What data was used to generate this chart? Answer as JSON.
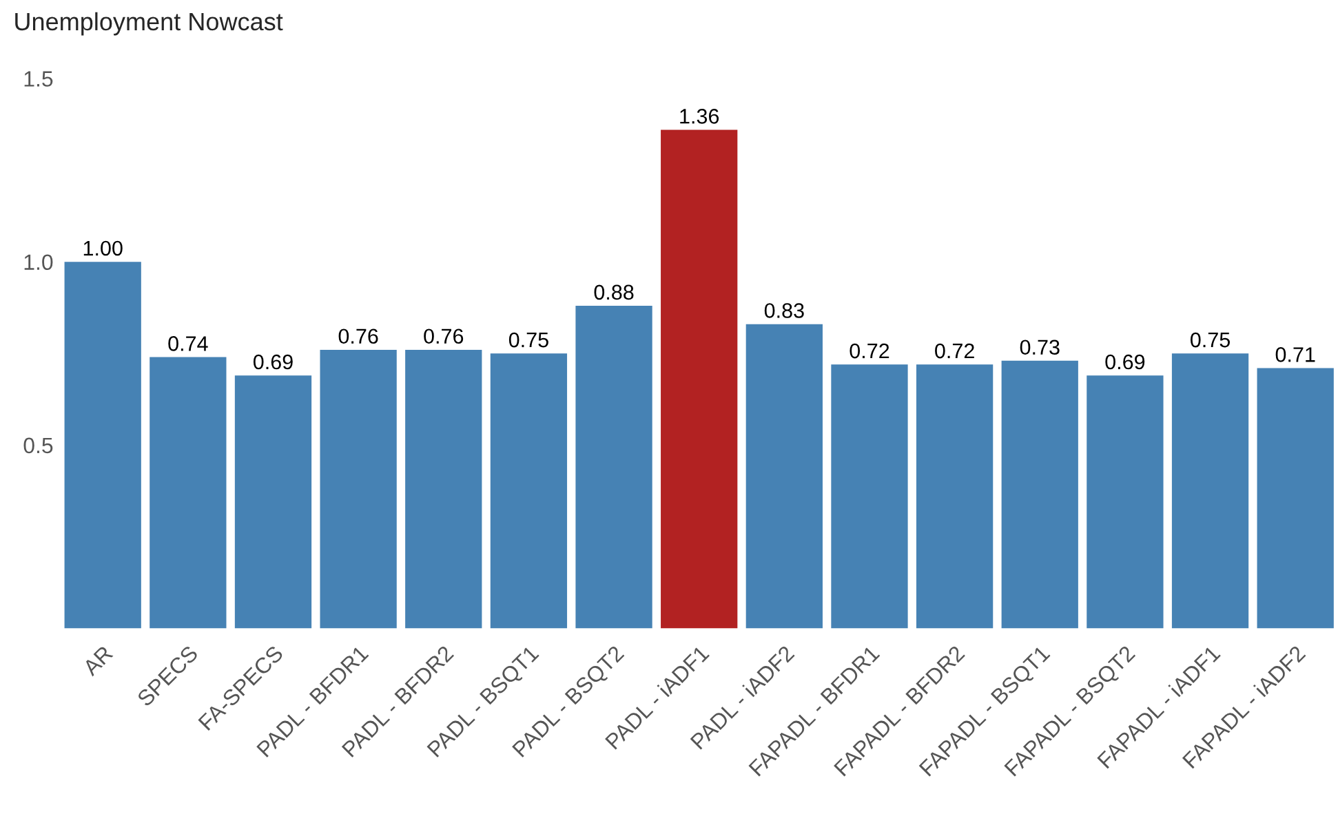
{
  "chart_data": {
    "type": "bar",
    "title": "Unemployment Nowcast",
    "categories": [
      "AR",
      "SPECS",
      "FA-SPECS",
      "PADL - BFDR1",
      "PADL - BFDR2",
      "PADL - BSQT1",
      "PADL - BSQT2",
      "PADL - iADF1",
      "PADL - iADF2",
      "FAPADL - BFDR1",
      "FAPADL - BFDR2",
      "FAPADL - BSQT1",
      "FAPADL - BSQT2",
      "FAPADL - iADF1",
      "FAPADL - iADF2"
    ],
    "values": [
      1.0,
      0.74,
      0.69,
      0.76,
      0.76,
      0.75,
      0.88,
      1.36,
      0.83,
      0.72,
      0.72,
      0.73,
      0.69,
      0.75,
      0.71
    ],
    "value_labels": [
      "1.00",
      "0.74",
      "0.69",
      "0.76",
      "0.76",
      "0.75",
      "0.88",
      "1.36",
      "0.83",
      "0.72",
      "0.72",
      "0.73",
      "0.69",
      "0.75",
      "0.71"
    ],
    "colors": [
      "#4682b4",
      "#4682b4",
      "#4682b4",
      "#4682b4",
      "#4682b4",
      "#4682b4",
      "#4682b4",
      "#b22222",
      "#4682b4",
      "#4682b4",
      "#4682b4",
      "#4682b4",
      "#4682b4",
      "#4682b4",
      "#4682b4"
    ],
    "ylim": [
      0,
      1.5
    ],
    "yticks": [
      {
        "value": 0.5,
        "label": "0.5"
      },
      {
        "value": 1,
        "label": "1.0"
      },
      {
        "value": 1.5,
        "label": "1.5"
      }
    ],
    "grid": false,
    "legend": false
  }
}
